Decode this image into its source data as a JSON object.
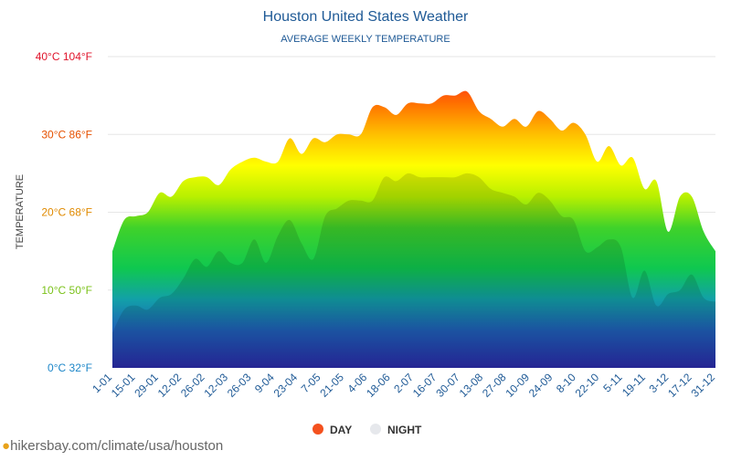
{
  "chart_data": {
    "type": "area",
    "title": "Houston United States Weather",
    "subtitle": "AVERAGE WEEKLY TEMPERATURE",
    "ylabel": "TEMPERATURE",
    "ylim": [
      0,
      40
    ],
    "y_ticks": [
      {
        "value": 0,
        "label": "0°C 32°F",
        "color": "#1c86c8"
      },
      {
        "value": 10,
        "label": "10°C 50°F",
        "color": "#7bc21a"
      },
      {
        "value": 20,
        "label": "20°C 68°F",
        "color": "#e08a00"
      },
      {
        "value": 30,
        "label": "30°C 86°F",
        "color": "#e65100"
      },
      {
        "value": 40,
        "label": "40°C 104°F",
        "color": "#e0142b"
      }
    ],
    "x_tick_labels": [
      "1-01",
      "15-01",
      "29-01",
      "12-02",
      "26-02",
      "12-03",
      "26-03",
      "9-04",
      "23-04",
      "7-05",
      "21-05",
      "4-06",
      "18-06",
      "2-07",
      "16-07",
      "30-07",
      "13-08",
      "27-08",
      "10-09",
      "24-09",
      "8-10",
      "22-10",
      "5-11",
      "19-11",
      "3-12",
      "17-12",
      "31-12"
    ],
    "series": [
      {
        "name": "DAY",
        "color": "#f4511e",
        "values": [
          15.0,
          19.0,
          19.5,
          20.0,
          22.5,
          22.0,
          24.0,
          24.5,
          24.5,
          23.5,
          25.5,
          26.5,
          27.0,
          26.5,
          26.5,
          29.5,
          27.5,
          29.5,
          29.0,
          30.0,
          30.0,
          30.0,
          33.5,
          33.5,
          32.5,
          34.0,
          34.0,
          34.0,
          35.0,
          35.0,
          35.5,
          33.0,
          32.0,
          31.0,
          32.0,
          31.0,
          33.0,
          32.0,
          30.5,
          31.5,
          30.0,
          26.5,
          28.5,
          26.0,
          27.0,
          23.0,
          24.0,
          17.5,
          22.0,
          22.0,
          17.5,
          15.0
        ]
      },
      {
        "name": "NIGHT",
        "color": "#e6e8ec",
        "values": [
          4.5,
          7.5,
          8.0,
          7.5,
          9.0,
          9.5,
          11.5,
          14.0,
          13.0,
          15.0,
          13.5,
          13.5,
          16.5,
          13.5,
          17.0,
          19.0,
          16.0,
          14.0,
          19.5,
          20.5,
          21.5,
          21.5,
          21.5,
          24.5,
          24.0,
          25.0,
          24.5,
          24.5,
          24.5,
          24.5,
          25.0,
          24.5,
          23.0,
          22.5,
          22.0,
          21.0,
          22.5,
          21.5,
          19.5,
          19.0,
          15.0,
          15.5,
          16.5,
          15.5,
          9.0,
          12.5,
          8.0,
          9.5,
          10.0,
          12.0,
          9.0,
          8.5
        ]
      }
    ],
    "grid": true,
    "legend_position": "bottom"
  },
  "footer": {
    "source_text": "hikersbay.com/climate/usa/houston"
  }
}
